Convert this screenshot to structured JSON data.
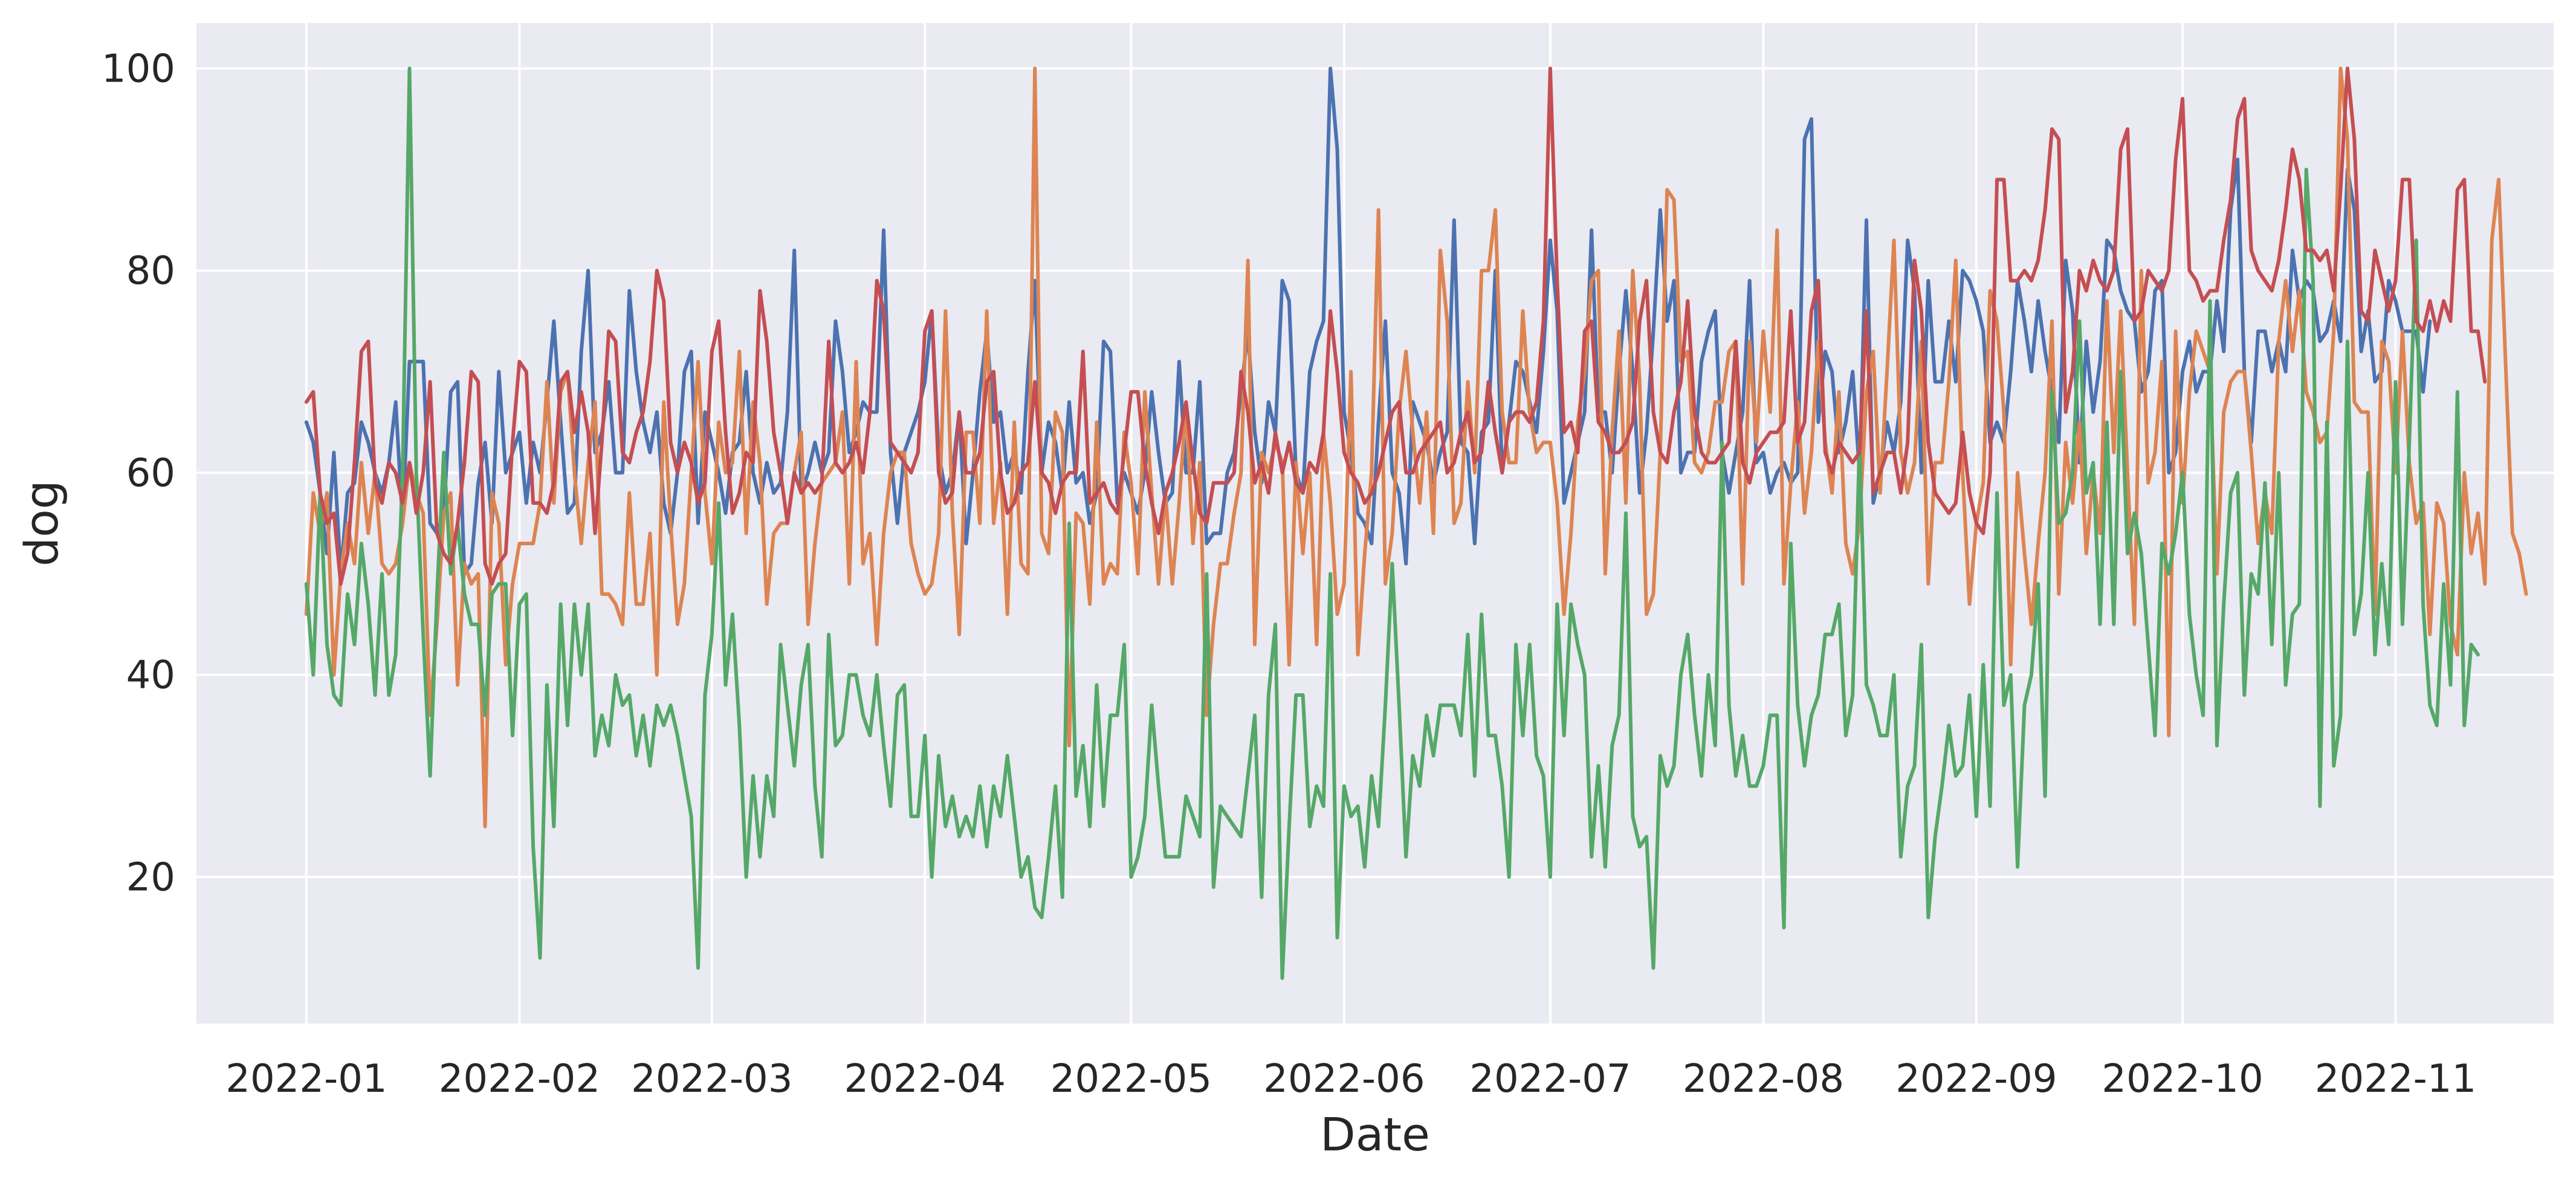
{
  "chart_data": {
    "type": "line",
    "title": "",
    "xlabel": "Date",
    "ylabel": "dog",
    "x_start": "2022-01-01",
    "x_end": "2022-11-08",
    "xlim": [
      "2021-12-16",
      "2022-11-24"
    ],
    "ylim": [
      5.5,
      104.5
    ],
    "x_ticks": [
      "2022-01",
      "2022-02",
      "2022-03",
      "2022-04",
      "2022-05",
      "2022-06",
      "2022-07",
      "2022-08",
      "2022-09",
      "2022-10",
      "2022-11"
    ],
    "y_ticks": [
      20,
      40,
      60,
      80,
      100
    ],
    "grid": true,
    "legend": "none",
    "colors": [
      "#4c72b0",
      "#dd8452",
      "#55a868",
      "#c44e52"
    ],
    "background": "#eaeaf2",
    "series": [
      {
        "values": [
          65,
          63,
          58,
          52,
          62,
          50,
          58,
          59,
          65,
          63,
          60,
          58,
          61,
          67,
          55,
          71,
          71,
          71,
          55,
          54,
          56,
          68,
          69,
          50,
          51,
          59,
          63,
          55,
          70,
          60,
          62,
          64,
          57,
          63,
          60,
          67,
          75,
          65,
          56,
          57,
          72,
          80,
          62,
          64,
          69,
          60,
          60,
          78,
          70,
          65,
          62,
          66,
          57,
          54,
          60,
          70,
          72,
          55,
          66,
          63,
          60,
          56,
          62,
          63,
          70,
          60,
          57,
          61,
          58,
          59,
          66,
          82,
          58,
          60,
          63,
          60,
          62,
          75,
          70,
          62,
          64,
          67,
          66,
          66,
          84,
          62,
          55,
          62,
          64,
          66,
          69,
          76,
          62,
          58,
          60,
          66,
          53,
          60,
          68,
          74,
          65,
          66,
          60,
          62,
          58,
          70,
          79,
          60,
          65,
          63,
          58,
          67,
          59,
          60,
          55,
          58,
          73,
          72,
          57,
          60,
          58,
          56,
          60,
          68,
          62,
          57,
          58,
          71,
          60,
          60,
          69,
          53,
          54,
          54,
          60,
          62,
          68,
          74,
          64,
          59,
          67,
          64,
          79,
          77,
          60,
          58,
          70,
          73,
          75,
          100,
          92,
          66,
          62,
          56,
          55,
          53,
          65,
          75,
          60,
          58,
          51,
          67,
          65,
          63,
          59,
          62,
          64,
          85,
          63,
          62,
          53,
          64,
          65,
          80,
          60,
          65,
          71,
          70,
          67,
          64,
          72,
          83,
          76,
          57,
          60,
          63,
          66,
          84,
          66,
          66,
          60,
          70,
          78,
          70,
          58,
          64,
          74,
          86,
          75,
          79,
          60,
          62,
          62,
          71,
          74,
          76,
          62,
          58,
          62,
          66,
          79,
          61,
          62,
          58,
          60,
          61,
          59,
          60,
          93,
          95,
          65,
          72,
          70,
          62,
          65,
          70,
          60,
          85,
          57,
          60,
          65,
          62,
          67,
          83,
          78,
          60,
          79,
          69,
          69,
          75,
          69,
          80,
          79,
          77,
          74,
          63,
          65,
          63,
          70,
          79,
          75,
          70,
          77,
          72,
          68,
          63,
          81,
          76,
          61,
          73,
          66,
          71,
          83,
          82,
          78,
          76,
          75,
          68,
          70,
          78,
          79,
          60,
          62,
          70,
          73,
          68,
          70,
          70,
          77,
          72,
          86,
          91,
          70,
          63,
          74,
          74,
          70,
          73,
          70,
          82,
          77,
          79,
          78,
          73,
          74,
          77,
          73,
          90,
          86,
          72,
          76,
          69,
          70,
          79,
          77,
          74,
          74,
          74,
          68,
          75
        ]
      },
      {
        "values": [
          46,
          58,
          54,
          58,
          40,
          50,
          55,
          51,
          61,
          54,
          60,
          51,
          50,
          51,
          55,
          61,
          58,
          56,
          36,
          45,
          56,
          58,
          39,
          51,
          49,
          50,
          25,
          58,
          55,
          41,
          49,
          53,
          53,
          53,
          57,
          69,
          57,
          68,
          70,
          60,
          53,
          61,
          67,
          48,
          48,
          47,
          45,
          58,
          47,
          47,
          54,
          40,
          67,
          55,
          45,
          49,
          60,
          71,
          58,
          51,
          65,
          60,
          61,
          72,
          54,
          67,
          61,
          47,
          54,
          55,
          55,
          60,
          64,
          45,
          53,
          59,
          60,
          61,
          66,
          49,
          71,
          51,
          54,
          43,
          54,
          60,
          62,
          62,
          53,
          50,
          48,
          49,
          54,
          76,
          56,
          44,
          64,
          64,
          55,
          76,
          55,
          61,
          46,
          65,
          51,
          50,
          100,
          54,
          52,
          66,
          64,
          33,
          56,
          55,
          47,
          65,
          49,
          51,
          50,
          64,
          59,
          50,
          68,
          58,
          49,
          58,
          49,
          57,
          67,
          53,
          61,
          36,
          45,
          51,
          51,
          56,
          60,
          81,
          43,
          62,
          60,
          63,
          61,
          41,
          61,
          52,
          60,
          43,
          64,
          57,
          46,
          49,
          70,
          42,
          52,
          60,
          86,
          49,
          54,
          66,
          72,
          64,
          57,
          66,
          54,
          82,
          75,
          55,
          57,
          69,
          60,
          80,
          80,
          86,
          66,
          61,
          61,
          76,
          66,
          62,
          63,
          63,
          57,
          46,
          54,
          65,
          70,
          79,
          80,
          50,
          64,
          74,
          57,
          80,
          69,
          46,
          48,
          62,
          88,
          87,
          71,
          72,
          61,
          60,
          62,
          67,
          67,
          72,
          73,
          49,
          73,
          63,
          74,
          66,
          84,
          49,
          59,
          67,
          56,
          62,
          73,
          63,
          58,
          68,
          53,
          50,
          55,
          68,
          72,
          58,
          70,
          83,
          62,
          58,
          61,
          73,
          49,
          61,
          61,
          69,
          81,
          60,
          47,
          55,
          59,
          78,
          75,
          66,
          41,
          60,
          52,
          45,
          53,
          60,
          75,
          48,
          63,
          57,
          65,
          52,
          60,
          54,
          77,
          62,
          76,
          60,
          45,
          80,
          59,
          62,
          71,
          34,
          74,
          57,
          68,
          74,
          72,
          70,
          50,
          66,
          69,
          70,
          70,
          62,
          53,
          58,
          54,
          73,
          79,
          72,
          78,
          68,
          66,
          63,
          64,
          74,
          100,
          93,
          67,
          66,
          66,
          46,
          73,
          71,
          60,
          74,
          61,
          55,
          57,
          44,
          57,
          55,
          45,
          42,
          60,
          52,
          56,
          49,
          83,
          89,
          71,
          54,
          52,
          48
        ]
      },
      {
        "values": [
          49,
          40,
          58,
          43,
          38,
          37,
          48,
          43,
          53,
          47,
          38,
          50,
          38,
          42,
          60,
          100,
          60,
          44,
          30,
          48,
          62,
          50,
          55,
          48,
          45,
          45,
          36,
          48,
          49,
          49,
          34,
          47,
          48,
          23,
          12,
          39,
          25,
          47,
          35,
          47,
          40,
          47,
          32,
          36,
          33,
          40,
          37,
          38,
          32,
          36,
          31,
          37,
          35,
          37,
          34,
          30,
          26,
          11,
          38,
          44,
          57,
          39,
          46,
          35,
          20,
          30,
          22,
          30,
          26,
          43,
          37,
          31,
          39,
          43,
          29,
          22,
          44,
          33,
          34,
          40,
          40,
          36,
          34,
          40,
          33,
          27,
          38,
          39,
          26,
          26,
          34,
          20,
          32,
          25,
          28,
          24,
          26,
          24,
          29,
          23,
          29,
          26,
          32,
          26,
          20,
          22,
          17,
          16,
          22,
          29,
          18,
          55,
          28,
          33,
          25,
          39,
          27,
          36,
          36,
          43,
          20,
          22,
          26,
          37,
          29,
          22,
          22,
          22,
          28,
          26,
          24,
          50,
          19,
          27,
          26,
          25,
          24,
          30,
          36,
          18,
          38,
          45,
          10,
          25,
          38,
          38,
          25,
          29,
          27,
          50,
          14,
          29,
          26,
          27,
          21,
          30,
          25,
          37,
          51,
          37,
          22,
          32,
          29,
          36,
          32,
          37,
          37,
          37,
          34,
          44,
          30,
          46,
          34,
          34,
          29,
          20,
          43,
          34,
          43,
          32,
          30,
          20,
          47,
          34,
          47,
          43,
          40,
          22,
          31,
          21,
          33,
          36,
          56,
          26,
          23,
          24,
          11,
          32,
          29,
          31,
          40,
          44,
          36,
          30,
          40,
          33,
          63,
          37,
          30,
          34,
          29,
          29,
          31,
          36,
          36,
          15,
          53,
          37,
          31,
          36,
          38,
          44,
          44,
          47,
          34,
          38,
          63,
          39,
          37,
          34,
          34,
          40,
          22,
          29,
          31,
          43,
          16,
          24,
          29,
          35,
          30,
          31,
          38,
          26,
          41,
          27,
          58,
          37,
          40,
          21,
          37,
          40,
          49,
          28,
          68,
          55,
          56,
          60,
          75,
          58,
          61,
          45,
          65,
          45,
          70,
          52,
          56,
          52,
          43,
          34,
          53,
          50,
          54,
          60,
          46,
          40,
          36,
          77,
          33,
          47,
          58,
          60,
          38,
          50,
          48,
          59,
          43,
          60,
          39,
          46,
          47,
          90,
          79,
          27,
          65,
          31,
          36,
          73,
          44,
          48,
          60,
          42,
          51,
          43,
          69,
          45,
          63,
          83,
          47,
          37,
          35,
          49,
          39,
          68,
          35,
          43,
          42
        ]
      },
      {
        "values": [
          67,
          68,
          58,
          55,
          56,
          49,
          52,
          61,
          72,
          73,
          59,
          57,
          61,
          60,
          57,
          61,
          56,
          60,
          69,
          54,
          52,
          51,
          55,
          61,
          70,
          69,
          51,
          49,
          51,
          52,
          63,
          71,
          70,
          57,
          57,
          56,
          59,
          69,
          70,
          64,
          68,
          64,
          54,
          63,
          74,
          73,
          62,
          61,
          64,
          66,
          71,
          80,
          77,
          63,
          60,
          63,
          61,
          57,
          59,
          72,
          75,
          64,
          56,
          58,
          62,
          61,
          78,
          73,
          64,
          60,
          55,
          60,
          58,
          59,
          58,
          59,
          73,
          61,
          60,
          61,
          63,
          60,
          66,
          79,
          76,
          63,
          62,
          61,
          60,
          62,
          74,
          76,
          60,
          57,
          58,
          66,
          60,
          60,
          62,
          69,
          70,
          60,
          56,
          57,
          60,
          61,
          69,
          60,
          59,
          56,
          59,
          60,
          60,
          72,
          57,
          58,
          59,
          57,
          56,
          62,
          68,
          68,
          61,
          57,
          54,
          58,
          60,
          63,
          67,
          61,
          56,
          55,
          59,
          59,
          59,
          60,
          70,
          66,
          59,
          61,
          58,
          64,
          60,
          63,
          59,
          58,
          61,
          60,
          64,
          76,
          70,
          62,
          60,
          59,
          57,
          58,
          60,
          63,
          66,
          67,
          60,
          60,
          62,
          63,
          64,
          65,
          60,
          61,
          64,
          66,
          61,
          62,
          69,
          64,
          60,
          65,
          66,
          66,
          65,
          67,
          75,
          100,
          79,
          64,
          65,
          62,
          74,
          75,
          65,
          64,
          62,
          62,
          63,
          65,
          75,
          79,
          66,
          62,
          61,
          66,
          69,
          77,
          66,
          62,
          61,
          61,
          62,
          63,
          73,
          61,
          59,
          62,
          63,
          64,
          64,
          65,
          76,
          63,
          65,
          76,
          79,
          62,
          60,
          63,
          62,
          61,
          62,
          76,
          58,
          60,
          62,
          62,
          58,
          63,
          81,
          76,
          63,
          58,
          57,
          56,
          57,
          64,
          58,
          55,
          54,
          60,
          89,
          89,
          79,
          79,
          80,
          79,
          81,
          86,
          94,
          93,
          66,
          70,
          80,
          78,
          81,
          79,
          78,
          80,
          92,
          94,
          75,
          76,
          80,
          79,
          78,
          80,
          91,
          97,
          80,
          79,
          77,
          78,
          78,
          83,
          87,
          95,
          97,
          82,
          80,
          79,
          78,
          81,
          86,
          92,
          89,
          82,
          82,
          81,
          82,
          78,
          88,
          100,
          93,
          76,
          75,
          82,
          79,
          76,
          79,
          89,
          89,
          75,
          74,
          77,
          74,
          77,
          75,
          88,
          89,
          74,
          74,
          69
        ]
      }
    ]
  }
}
